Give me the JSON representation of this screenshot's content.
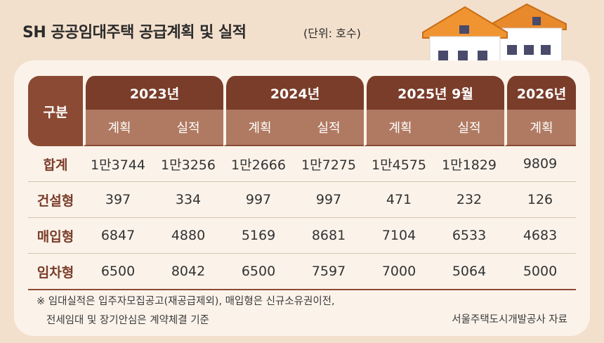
{
  "title": "SH 공공임대주택 공급계획 및 실적",
  "unit": "(단위: 호수)",
  "table": {
    "corner_label": "구분",
    "years": [
      "2023년",
      "2024년",
      "2025년 9월",
      "2026년"
    ],
    "sub_headers": [
      "계획",
      "실적",
      "계획",
      "실적",
      "계획",
      "실적",
      "계획"
    ],
    "rows": [
      {
        "label": "합계",
        "cells": [
          "1만3744",
          "1만3256",
          "1만2666",
          "1만7275",
          "1만4575",
          "1만1829",
          "9809"
        ]
      },
      {
        "label": "건설형",
        "cells": [
          "397",
          "334",
          "997",
          "997",
          "471",
          "232",
          "126"
        ]
      },
      {
        "label": "매입형",
        "cells": [
          "6847",
          "4880",
          "5169",
          "8681",
          "7104",
          "6533",
          "4683"
        ]
      },
      {
        "label": "임차형",
        "cells": [
          "6500",
          "8042",
          "6500",
          "7597",
          "7000",
          "5064",
          "5000"
        ]
      }
    ]
  },
  "notes": {
    "line1": "※ 임대실적은 입주자모집공고(재공급제외), 매입형은 신규소유권이전,",
    "line2": "전세임대 및 장기안심은 계약체결 기준",
    "source": "서울주택도시개발공사 자료"
  },
  "colors": {
    "header_dark": "#7a3d2a",
    "header_light": "#b07a62",
    "background": "#f3e0cc",
    "card": "#fbf3ea",
    "roof": "#e8892c"
  },
  "chart_data": {
    "type": "table",
    "title": "SH 공공임대주택 공급계획 및 실적",
    "unit": "(단위: 호수)",
    "columns": [
      {
        "year": "2023년",
        "kind": "계획"
      },
      {
        "year": "2023년",
        "kind": "실적"
      },
      {
        "year": "2024년",
        "kind": "계획"
      },
      {
        "year": "2024년",
        "kind": "실적"
      },
      {
        "year": "2025년 9월",
        "kind": "계획"
      },
      {
        "year": "2025년 9월",
        "kind": "실적"
      },
      {
        "year": "2026년",
        "kind": "계획"
      }
    ],
    "series": [
      {
        "name": "합계",
        "values": [
          13744,
          13256,
          12666,
          17275,
          14575,
          11829,
          9809
        ]
      },
      {
        "name": "건설형",
        "values": [
          397,
          334,
          997,
          997,
          471,
          232,
          126
        ]
      },
      {
        "name": "매입형",
        "values": [
          6847,
          4880,
          5169,
          8681,
          7104,
          6533,
          4683
        ]
      },
      {
        "name": "임차형",
        "values": [
          6500,
          8042,
          6500,
          7597,
          7000,
          5064,
          5000
        ]
      }
    ]
  }
}
